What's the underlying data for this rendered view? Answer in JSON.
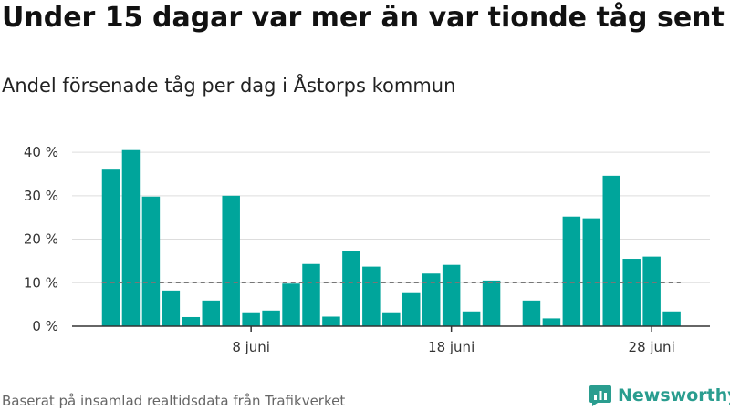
{
  "title": "Under 15 dagar var mer än var tionde tåg sent",
  "subtitle": "Andel försenade tåg per dag i Åstorps kommun",
  "source": "Baserat på insamlad realtidsdata från Trafikverket",
  "brand": {
    "name": "Newsworthy",
    "icon": "newsworthy-logo-icon"
  },
  "colors": {
    "bar": "#00a59b",
    "gridline": "#dddddd",
    "axis": "#333333",
    "reference_line": "#777777"
  },
  "chart_data": {
    "type": "bar",
    "title": "Under 15 dagar var mer än var tionde tåg sent",
    "subtitle": "Andel försenade tåg per dag i Åstorps kommun",
    "xlabel": "",
    "ylabel": "",
    "x": [
      "2024-06-01",
      "2024-06-02",
      "2024-06-03",
      "2024-06-04",
      "2024-06-05",
      "2024-06-06",
      "2024-06-07",
      "2024-06-08",
      "2024-06-09",
      "2024-06-10",
      "2024-06-11",
      "2024-06-12",
      "2024-06-13",
      "2024-06-14",
      "2024-06-15",
      "2024-06-16",
      "2024-06-17",
      "2024-06-18",
      "2024-06-19",
      "2024-06-20",
      "2024-06-21",
      "2024-06-22",
      "2024-06-23",
      "2024-06-24",
      "2024-06-25",
      "2024-06-26",
      "2024-06-27",
      "2024-06-28",
      "2024-06-29"
    ],
    "values": [
      36,
      40.5,
      29.8,
      8.2,
      2.1,
      5.9,
      30,
      3.2,
      3.6,
      9.8,
      14.3,
      2.2,
      17.2,
      13.7,
      3.2,
      7.6,
      12.1,
      14.1,
      3.4,
      10.5,
      null,
      5.9,
      1.8,
      25.2,
      24.8,
      34.6,
      15.5,
      16,
      3.4
    ],
    "ylim": [
      0,
      44
    ],
    "yticks": [
      0,
      10,
      20,
      30,
      40
    ],
    "ytick_labels": [
      "0 %",
      "10 %",
      "20 %",
      "30 %",
      "40 %"
    ],
    "xticks": [
      "2024-06-08",
      "2024-06-18",
      "2024-06-28"
    ],
    "xtick_labels": [
      "8 juni",
      "18 juni",
      "28 juni"
    ],
    "reference_line": {
      "y": 10,
      "style": "dashed"
    },
    "grid": true,
    "legend": "none"
  }
}
